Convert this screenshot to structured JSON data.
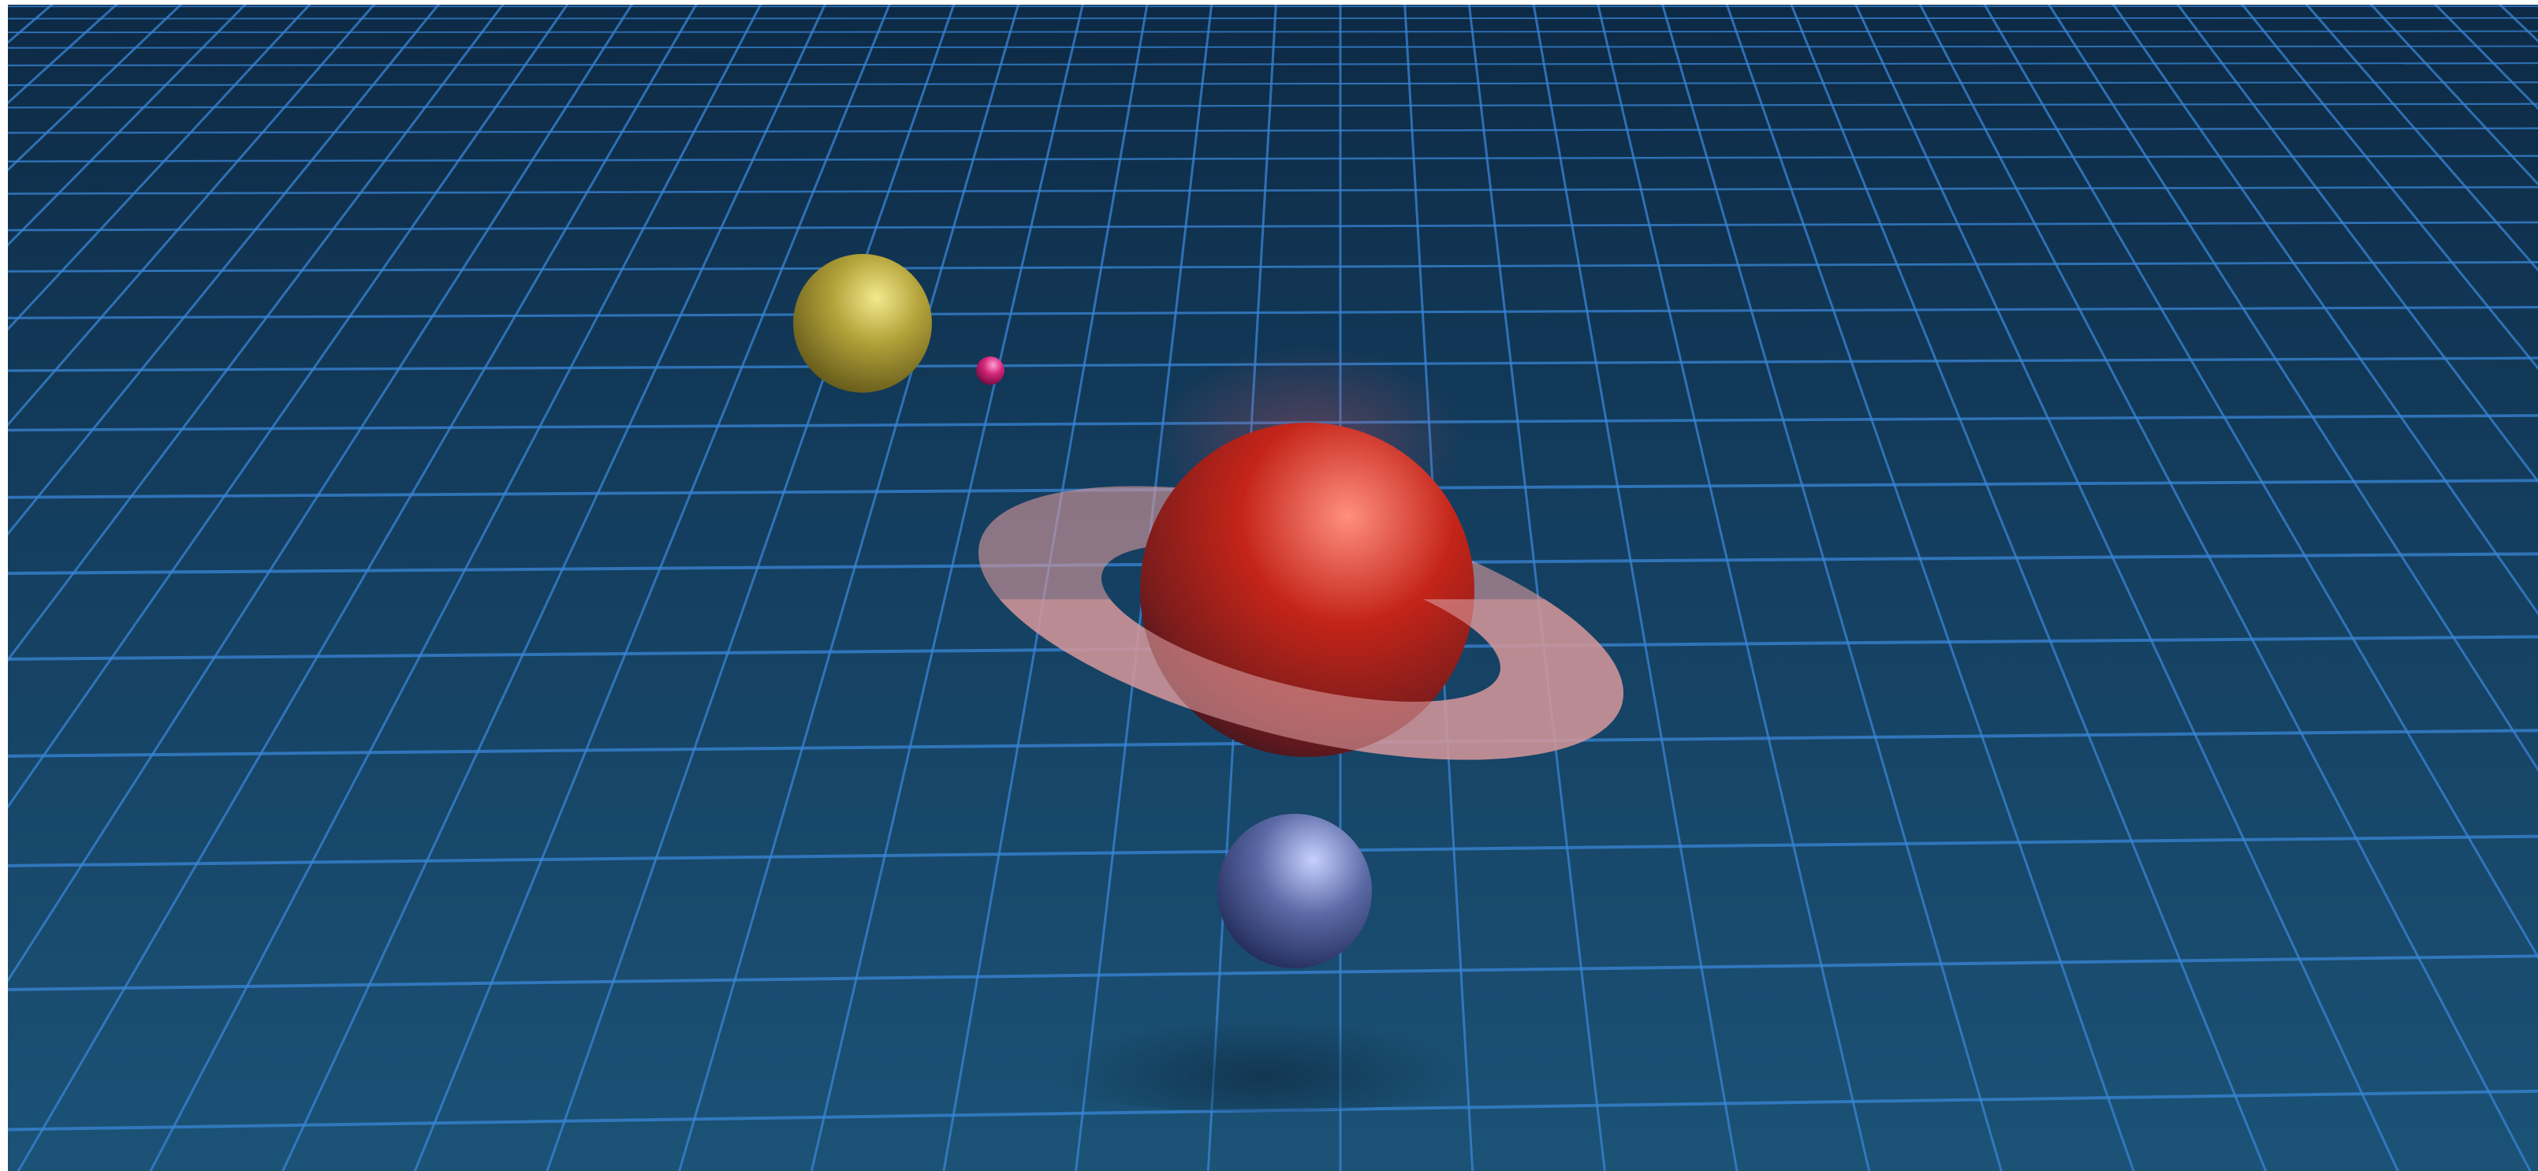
{
  "scene": {
    "colors": {
      "background_top": "#0d2a45",
      "background_mid": "#143e5f",
      "background_bottom": "#1b5276",
      "grid_line": "#3a86d6",
      "border": "#ffffff"
    },
    "objects": [
      {
        "id": "yellow-sphere",
        "name": "yellow-sphere",
        "color": "#b4a33a",
        "highlight": "#f2e98e",
        "shadow": "#5e5418"
      },
      {
        "id": "magenta-sphere",
        "name": "magenta-sphere",
        "color": "#d3247a",
        "highlight": "#ff9fd0",
        "shadow": "#6c0b3b"
      },
      {
        "id": "red-sphere",
        "name": "red-planet-sphere",
        "color": "#c42418",
        "highlight": "#ff8f80",
        "shadow": "#3a1520"
      },
      {
        "id": "ring",
        "name": "planet-ring",
        "color": "#d7989b"
      },
      {
        "id": "blue-sphere",
        "name": "blue-sphere",
        "color": "#5c6aa6",
        "highlight": "#c7d0ff",
        "shadow": "#1e2654"
      }
    ]
  }
}
